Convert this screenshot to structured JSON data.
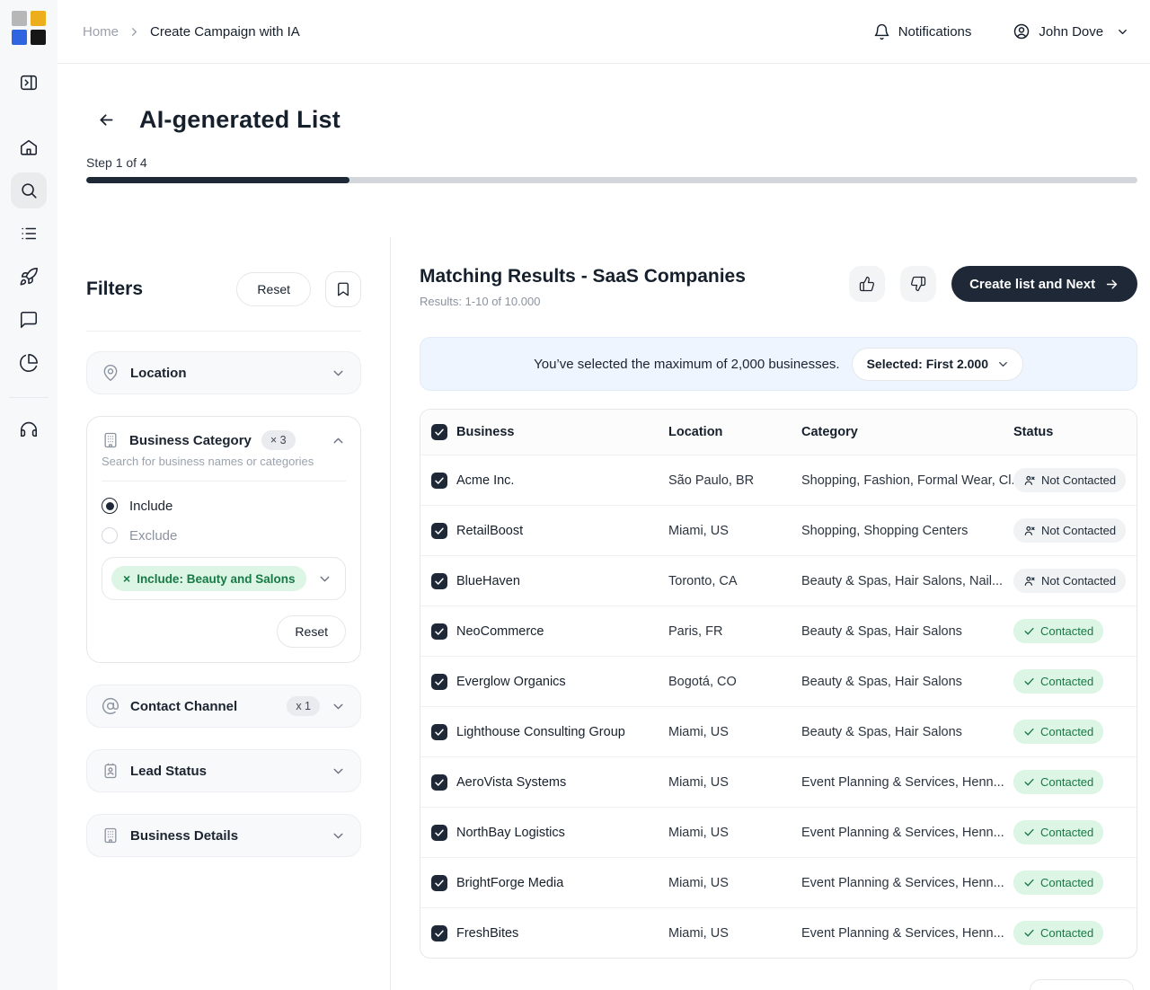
{
  "icons": {
    "close": "×",
    "check": "✓"
  },
  "topbar": {
    "breadcrumb": {
      "home": "Home",
      "current": "Create Campaign with IA"
    },
    "notifications_label": "Notifications",
    "user_name": "John Dove"
  },
  "page": {
    "title": "AI-generated List",
    "step_label": "Step 1 of 4",
    "progress_percent": 25
  },
  "filters": {
    "title": "Filters",
    "reset_label": "Reset",
    "location": {
      "label": "Location"
    },
    "business_category": {
      "label": "Business Category",
      "count_badge": "× 3",
      "subtitle": "Search for business names or categories",
      "include_label": "Include",
      "exclude_label": "Exclude",
      "chip_label": "Include: Beauty and Salons",
      "reset_label": "Reset"
    },
    "contact_channel": {
      "label": "Contact Channel",
      "count_badge": "x 1"
    },
    "lead_status": {
      "label": "Lead Status"
    },
    "business_details": {
      "label": "Business Details"
    }
  },
  "results": {
    "title": "Matching Results - SaaS Companies",
    "subtitle": "Results: 1-10 of 10.000",
    "create_button": "Create list and Next",
    "banner": {
      "message": "You’ve selected the maximum of 2,000 businesses.",
      "selected_label": "Selected: First 2.000"
    },
    "table": {
      "columns": [
        "Business",
        "Location",
        "Category",
        "Status"
      ],
      "rows": [
        {
          "business": "Acme Inc.",
          "location": "São Paulo, BR",
          "category": "Shopping, Fashion, Formal Wear, Cl..",
          "status": "Not Contacted",
          "contacted": false
        },
        {
          "business": "RetailBoost",
          "location": "Miami, US",
          "category": "Shopping, Shopping Centers",
          "status": "Not Contacted",
          "contacted": false
        },
        {
          "business": "BlueHaven",
          "location": "Toronto, CA",
          "category": "Beauty & Spas, Hair Salons, Nail...",
          "status": "Not Contacted",
          "contacted": false
        },
        {
          "business": "NeoCommerce",
          "location": "Paris, FR",
          "category": "Beauty & Spas, Hair Salons",
          "status": "Contacted",
          "contacted": true
        },
        {
          "business": "Everglow Organics",
          "location": "Bogotá, CO",
          "category": "Beauty & Spas, Hair Salons",
          "status": "Contacted",
          "contacted": true
        },
        {
          "business": "Lighthouse Consulting Group",
          "location": "Miami, US",
          "category": "Beauty & Spas, Hair Salons",
          "status": "Contacted",
          "contacted": true
        },
        {
          "business": "AeroVista Systems",
          "location": "Miami, US",
          "category": "Event Planning & Services, Henn...",
          "status": "Contacted",
          "contacted": true
        },
        {
          "business": "NorthBay Logistics",
          "location": "Miami, US",
          "category": "Event Planning & Services, Henn...",
          "status": "Contacted",
          "contacted": true
        },
        {
          "business": "BrightForge Media",
          "location": "Miami, US",
          "category": "Event Planning & Services, Henn...",
          "status": "Contacted",
          "contacted": true
        },
        {
          "business": "FreshBites",
          "location": "Miami, US",
          "category": "Event Planning & Services, Henn...",
          "status": "Contacted",
          "contacted": true
        }
      ]
    }
  },
  "colors": {
    "accent_dark": "#1e2836",
    "green_badge_bg": "#dcf5e4",
    "green_badge_text": "#177a46",
    "banner_bg": "#eef5fe",
    "progress_fill": "#1e2836"
  }
}
